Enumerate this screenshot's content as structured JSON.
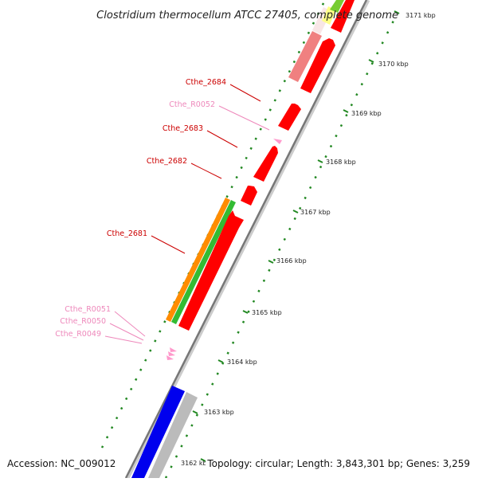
{
  "title": "Clostridium thermocellum ATCC 27405, complete genome",
  "footer": {
    "accession": "Accession: NC_009012",
    "info": "Topology: circular; Length: 3,843,301 bp; Genes: 3,259"
  },
  "colors": {
    "cds": "#ff0000",
    "cds_light": "#f08080",
    "rna": "#ff99cc",
    "orange": "#ff8c00",
    "green": "#33bb33",
    "blue": "#0000ee",
    "gray": "#bbbbbb",
    "backbone": "#888888",
    "dots": "#228822",
    "label_cds": "#cc0000",
    "label_rna": "#ee88bb"
  },
  "scale": {
    "ticks": [
      "3162 kbp",
      "3163 kbp",
      "3164 kbp",
      "3165 kbp",
      "3166 kbp",
      "3167 kbp",
      "3168 kbp",
      "3169 kbp",
      "3170 kbp",
      "3171 kbp"
    ]
  },
  "gene_labels": [
    {
      "text": "Cthe_2684",
      "type": "cds"
    },
    {
      "text": "Cthe_R0052",
      "type": "rna"
    },
    {
      "text": "Cthe_2683",
      "type": "cds"
    },
    {
      "text": "Cthe_2682",
      "type": "cds"
    },
    {
      "text": "Cthe_2681",
      "type": "cds"
    },
    {
      "text": "Cthe_R0051",
      "type": "rna"
    },
    {
      "text": "Cthe_R0050",
      "type": "rna"
    },
    {
      "text": "Cthe_R0049",
      "type": "rna"
    }
  ]
}
